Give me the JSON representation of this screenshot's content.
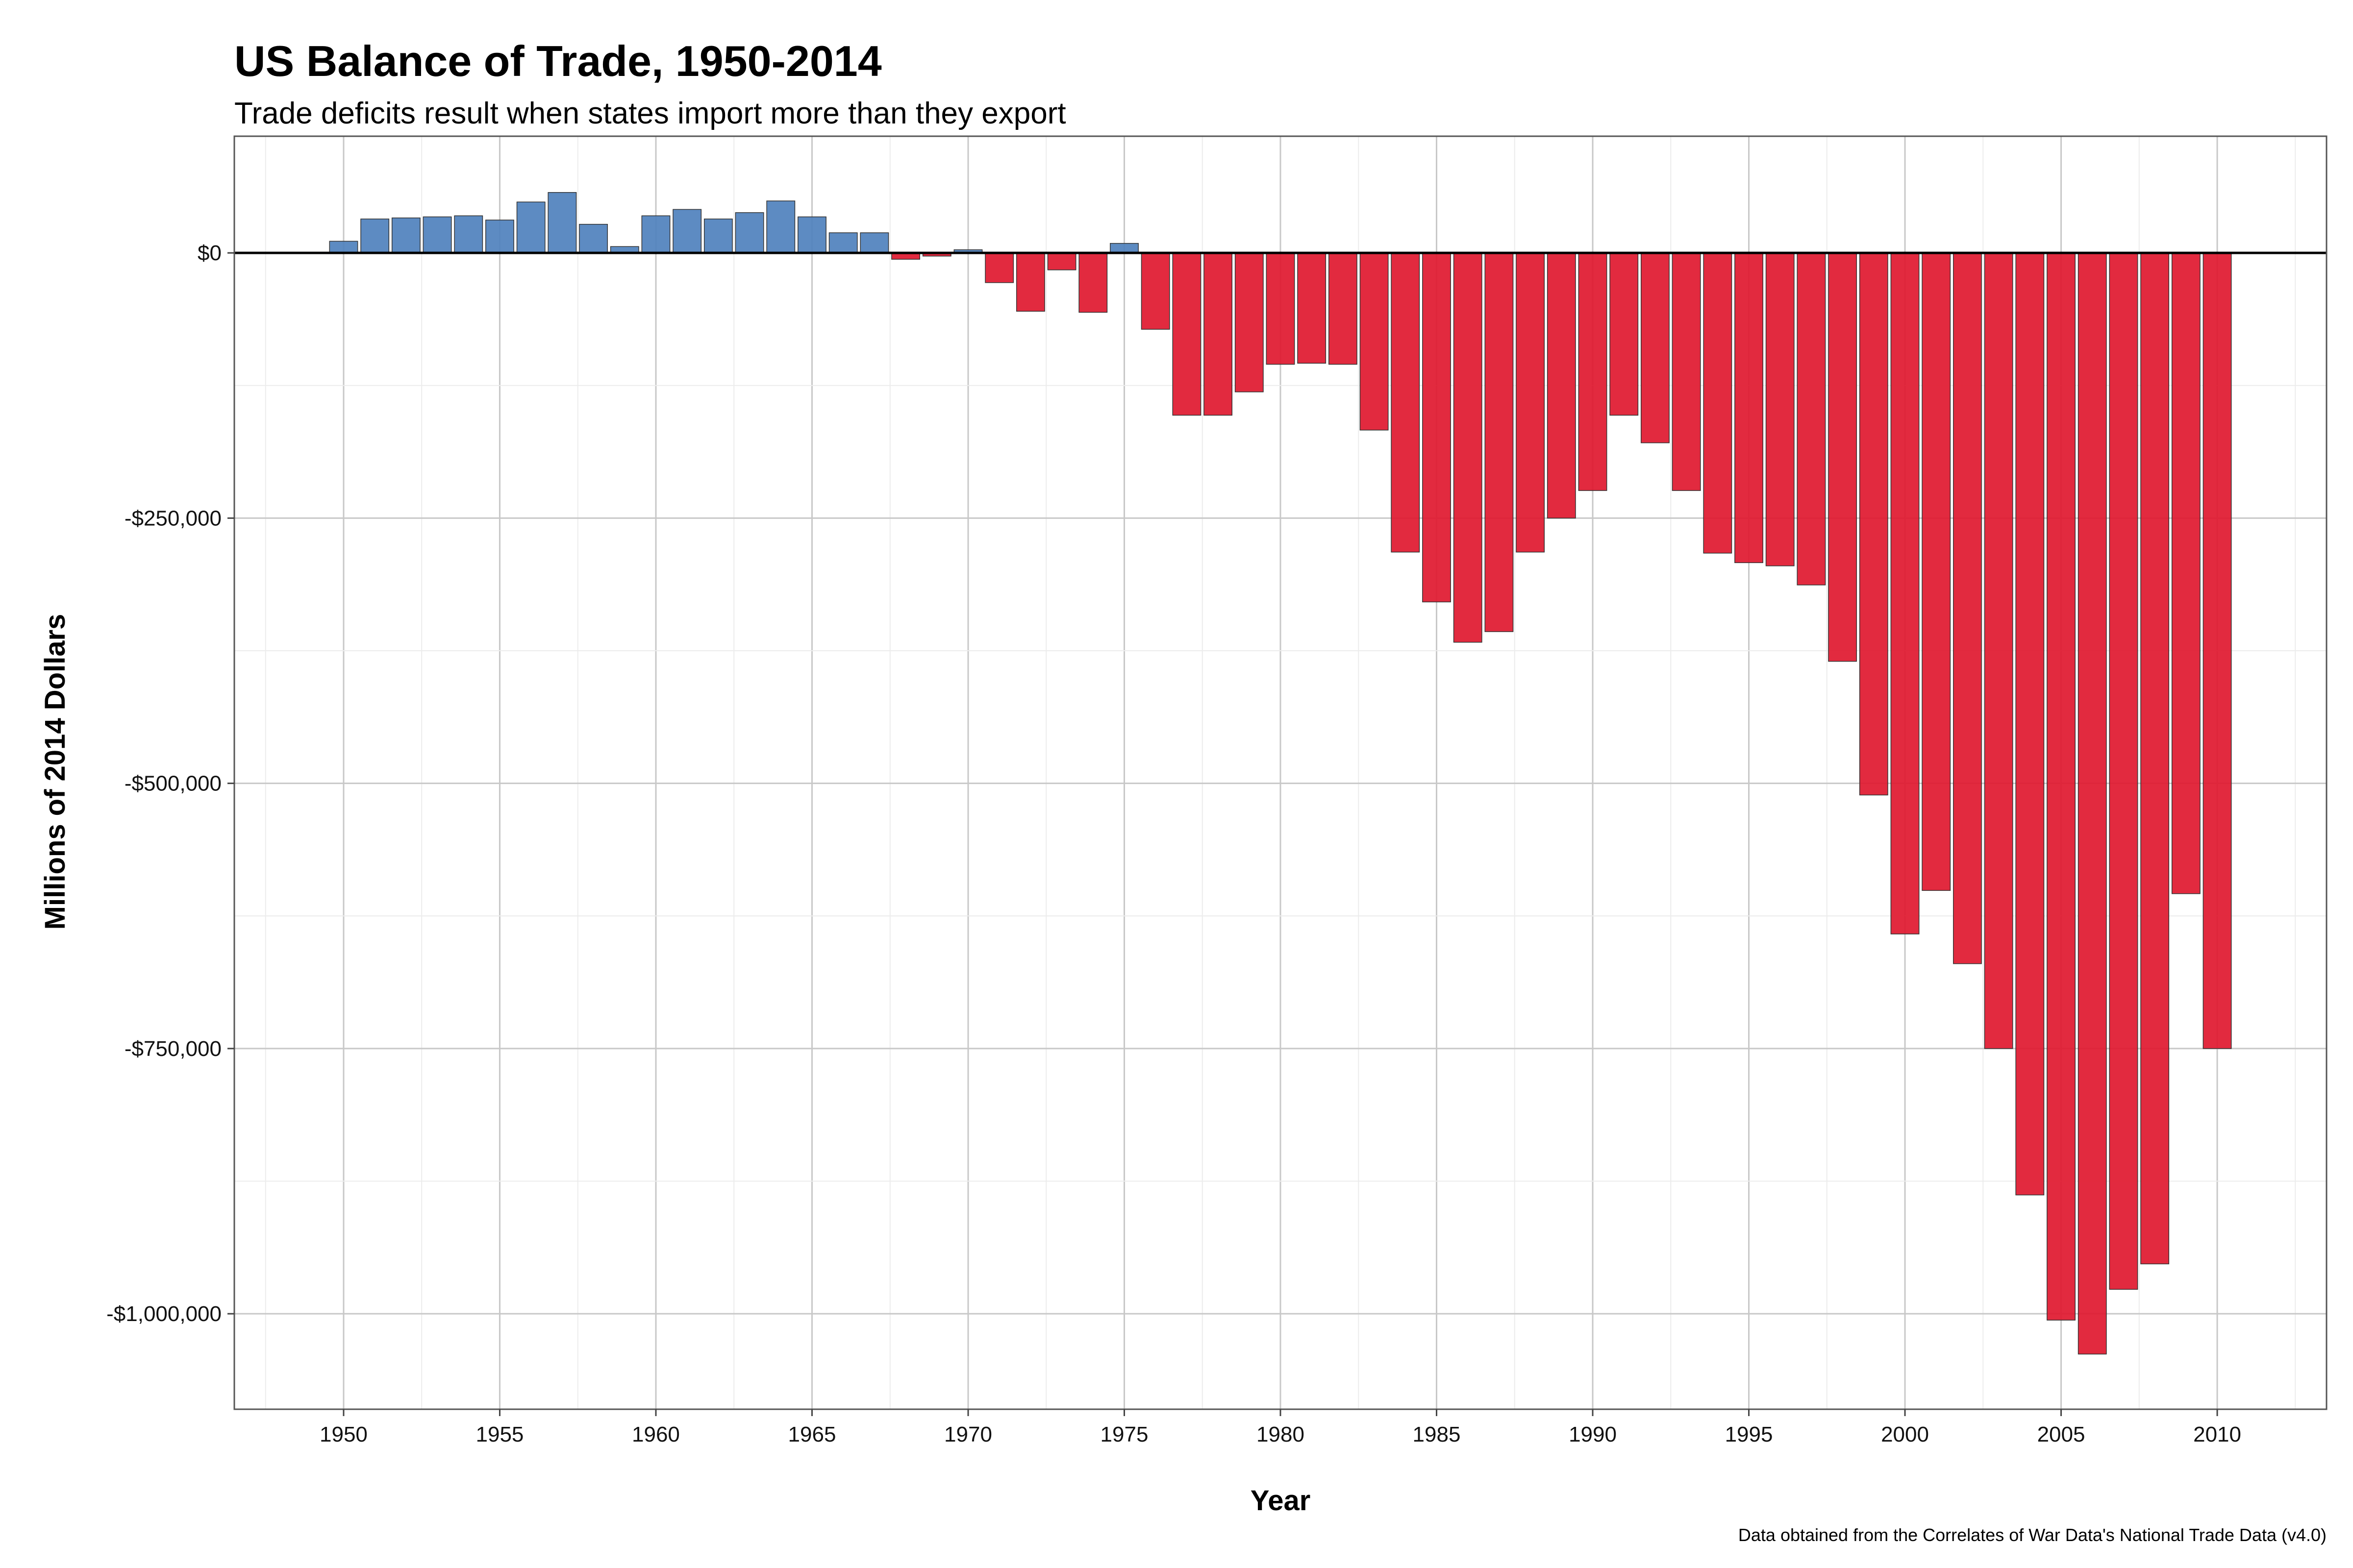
{
  "chart_data": {
    "type": "bar",
    "title": "US Balance of Trade, 1950-2014",
    "subtitle": "Trade deficits result when states import more than they export",
    "xlabel": "Year",
    "ylabel": "Millions of 2014 Dollars",
    "caption": "Data obtained from the Correlates of War Data's National Trade Data (v4.0)",
    "xlim": [
      1946.5,
      2013.5
    ],
    "ylim": [
      -1090000,
      110000
    ],
    "x_ticks": [
      "1950",
      "1955",
      "1960",
      "1965",
      "1970",
      "1975",
      "1980",
      "1985",
      "1990",
      "1995",
      "2000",
      "2005",
      "2010"
    ],
    "y_ticks": [
      {
        "value": 0,
        "label": "$0"
      },
      {
        "value": -250000,
        "label": "-$250,000"
      },
      {
        "value": -500000,
        "label": "-$500,000"
      },
      {
        "value": -750000,
        "label": "-$750,000"
      },
      {
        "value": -1000000,
        "label": "-$1,000,000"
      }
    ],
    "grid": true,
    "legend": "none",
    "colors": {
      "surplus": "#4f81bd",
      "deficit": "#e0182f",
      "zero_line": "#000000"
    },
    "x": [
      1950,
      1951,
      1952,
      1953,
      1954,
      1955,
      1956,
      1957,
      1958,
      1959,
      1960,
      1961,
      1962,
      1963,
      1964,
      1965,
      1966,
      1967,
      1968,
      1969,
      1970,
      1971,
      1972,
      1973,
      1974,
      1975,
      1976,
      1977,
      1978,
      1979,
      1980,
      1981,
      1982,
      1983,
      1984,
      1985,
      1986,
      1987,
      1988,
      1989,
      1990,
      1991,
      1992,
      1993,
      1994,
      1995,
      1996,
      1997,
      1998,
      1999,
      2000,
      2001,
      2002,
      2003,
      2004,
      2005,
      2006,
      2007,
      2008,
      2009,
      2010
    ],
    "values": [
      11000,
      32000,
      33000,
      34000,
      35000,
      31000,
      48000,
      57000,
      27000,
      6000,
      35000,
      41000,
      32000,
      38000,
      49000,
      34000,
      19000,
      19000,
      -6000,
      -3000,
      3000,
      -28000,
      -55000,
      -16000,
      -56000,
      9000,
      -72000,
      -153000,
      -153000,
      -131000,
      -105000,
      -104000,
      -105000,
      -167000,
      -282000,
      -329000,
      -367000,
      -357000,
      -282000,
      -250000,
      -224000,
      -153000,
      -179000,
      -224000,
      -283000,
      -292000,
      -295000,
      -313000,
      -385000,
      -511000,
      -642000,
      -601000,
      -670000,
      -750000,
      -888000,
      -1006000,
      -1038000,
      -977000,
      -953000,
      -604000,
      -750000
    ]
  }
}
